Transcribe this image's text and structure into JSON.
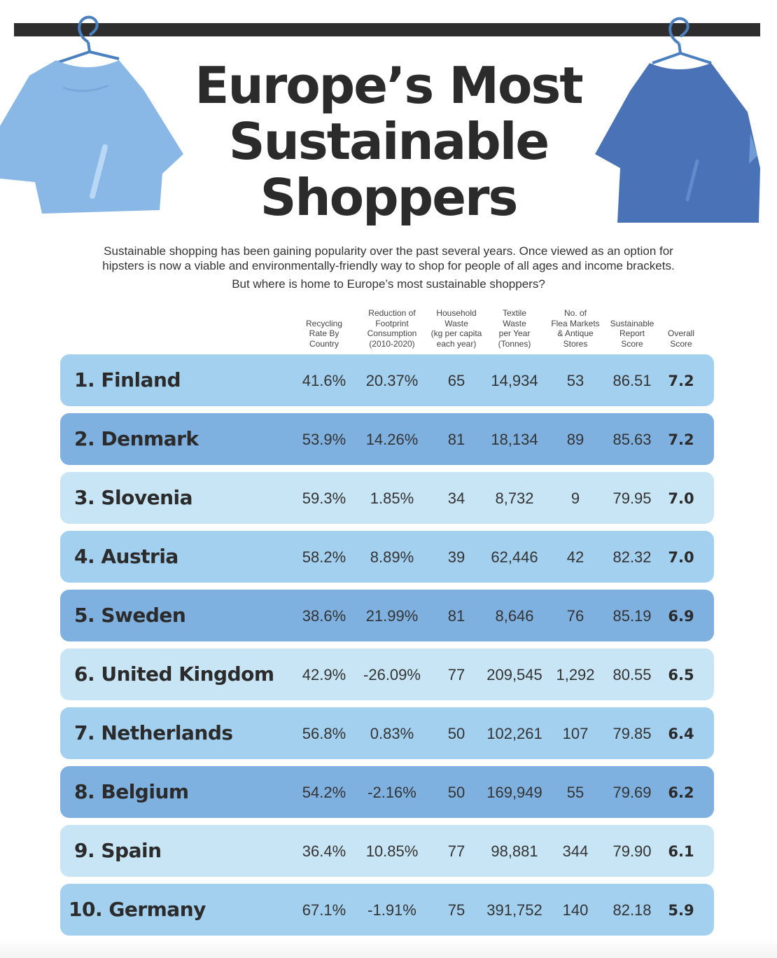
{
  "title": {
    "line1": "Europe’s Most",
    "line2": "Sustainable",
    "line3": "Shoppers"
  },
  "intro": {
    "line1": "Sustainable shopping has been gaining popularity over the past several years. Once viewed as an option for",
    "line2": "hipsters is now a viable and environmentally-friendly way to shop for people of all ages and income brackets.",
    "question": "But where is home to Europe’s most sustainable shoppers?"
  },
  "columns": [
    "Recycling\nRate By\nCountry",
    "Reduction of\nFootprint\nConsumption\n(2010-2020)",
    "Household\nWaste\n(kg per capita\neach year)",
    "Textile\nWaste\nper Year\n(Tonnes)",
    "No. of\nFlea Markets\n& Antique\nStores",
    "Sustainable\nReport\nScore",
    "Overall\nScore"
  ],
  "rows": [
    {
      "name": "1.  Finland",
      "values": [
        "41.6%",
        "20.37%",
        "65",
        "14,934",
        "53",
        "86.51",
        "7.2"
      ]
    },
    {
      "name": "2. Denmark",
      "values": [
        "53.9%",
        "14.26%",
        "81",
        "18,134",
        "89",
        "85.63",
        "7.2"
      ]
    },
    {
      "name": "3. Slovenia",
      "values": [
        "59.3%",
        "1.85%",
        "34",
        "8,732",
        "9",
        "79.95",
        "7.0"
      ]
    },
    {
      "name": "4. Austria",
      "values": [
        "58.2%",
        "8.89%",
        "39",
        "62,446",
        "42",
        "82.32",
        "7.0"
      ]
    },
    {
      "name": "5. Sweden",
      "values": [
        "38.6%",
        "21.99%",
        "81",
        "8,646",
        "76",
        "85.19",
        "6.9"
      ]
    },
    {
      "name": "6. United Kingdom",
      "values": [
        "42.9%",
        "-26.09%",
        "77",
        "209,545",
        "1,292",
        "80.55",
        "6.5"
      ]
    },
    {
      "name": "7.  Netherlands",
      "values": [
        "56.8%",
        "0.83%",
        "50",
        "102,261",
        "107",
        "79.85",
        "6.4"
      ]
    },
    {
      "name": "8. Belgium",
      "values": [
        "54.2%",
        "-2.16%",
        "50",
        "169,949",
        "55",
        "79.69",
        "6.2"
      ]
    },
    {
      "name": "9. Spain",
      "values": [
        "36.4%",
        "10.85%",
        "77",
        "98,881",
        "344",
        "79.90",
        "6.1"
      ]
    },
    {
      "name": "10. Germany",
      "values": [
        "67.1%",
        "-1.91%",
        "75",
        "391,752",
        "140",
        "82.18",
        "5.9"
      ]
    }
  ],
  "colors": {
    "row_palette": [
      "#a4d0f0",
      "#7fb1e0",
      "#c8e5f6"
    ],
    "shirt_left": "#8ab8e6",
    "shirt_right": "#4a72b6",
    "text": "#2b2b2b"
  },
  "icons": [
    "hanger-icon",
    "tshirt-icon"
  ]
}
